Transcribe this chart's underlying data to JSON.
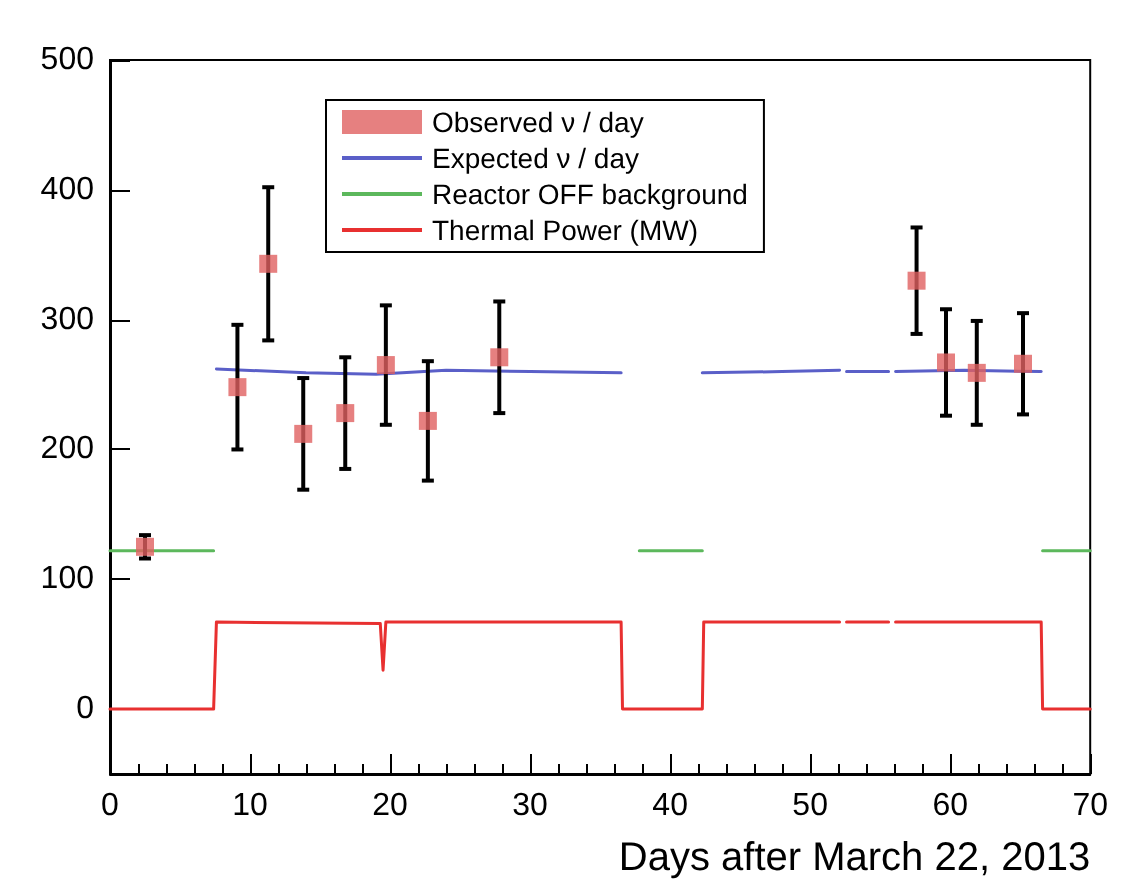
{
  "chart_data": {
    "type": "scatter",
    "xlabel": "Days after March 22, 2013",
    "xlim": [
      0,
      70
    ],
    "xticks": [
      0,
      10,
      20,
      30,
      40,
      50,
      60,
      70
    ],
    "ylim": [
      -50,
      500
    ],
    "yticks": [
      0,
      100,
      200,
      300,
      400,
      500
    ],
    "grid": false,
    "legend": "top",
    "series": [
      {
        "name": "Observed ν / day",
        "color": "#e06060",
        "marker": "square",
        "x": [
          2.5,
          9.1,
          11.3,
          13.8,
          16.8,
          19.7,
          22.7,
          27.8,
          57.6,
          59.7,
          61.9,
          65.2
        ],
        "values": [
          125,
          248,
          343,
          212,
          228,
          265,
          222,
          271,
          330,
          267,
          259,
          266
        ],
        "errors": [
          9,
          48,
          59,
          43,
          43,
          46,
          46,
          43,
          41,
          41,
          40,
          39
        ]
      },
      {
        "name": "Expected ν / day",
        "type": "line",
        "color": "#5a5fc8",
        "x": [
          7.6,
          14,
          19,
          24,
          30,
          36.5,
          36.6,
          42.3,
          48,
          52.1,
          52.2,
          52.6,
          55.6,
          55.8,
          56.1,
          61,
          66.5
        ],
        "values": [
          262,
          259,
          258,
          261,
          260,
          259,
          null,
          259,
          260,
          261,
          null,
          260,
          260,
          null,
          260,
          261,
          260
        ]
      },
      {
        "name": "Reactor OFF background",
        "type": "line",
        "color": "#5cb85c",
        "x": [
          0,
          7.4,
          7.5,
          37.8,
          42.3,
          42.4,
          66.6,
          70
        ],
        "values": [
          122,
          122,
          null,
          122,
          122,
          null,
          122,
          122
        ]
      },
      {
        "name": "Thermal Power (MW)",
        "type": "line",
        "color": "#e83030",
        "x": [
          0,
          7.4,
          7.6,
          19.3,
          19.5,
          19.7,
          36.5,
          36.6,
          42.3,
          42.4,
          52.1,
          52.2,
          52.6,
          55.6,
          55.7,
          56.1,
          66.5,
          66.6,
          70
        ],
        "values": [
          0,
          0,
          67,
          66,
          30,
          67,
          67,
          0,
          0,
          67,
          67,
          null,
          67,
          67,
          null,
          67,
          67,
          0,
          0
        ]
      }
    ]
  }
}
